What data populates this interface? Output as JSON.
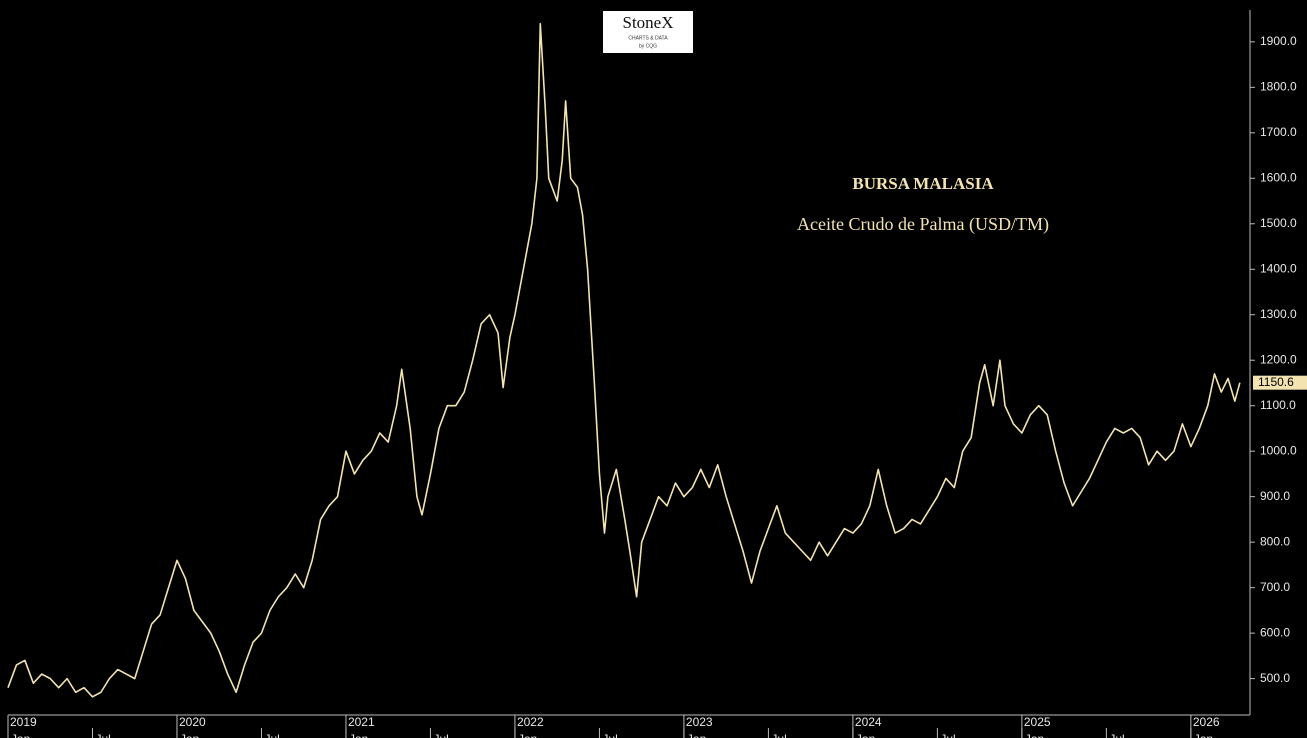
{
  "chart_data": {
    "type": "line",
    "title": "BURSA MALASIA",
    "subtitle": "Aceite Crudo de Palma (USD/TM)",
    "logo": {
      "brand": "StoneX",
      "tagline": "CHARTS & DATA",
      "byline": "by CQG"
    },
    "color": "#f3e3b0",
    "background": "#000000",
    "last_price": 1150.6,
    "x": [
      2019.0,
      2019.05,
      2019.1,
      2019.15,
      2019.2,
      2019.25,
      2019.3,
      2019.35,
      2019.4,
      2019.45,
      2019.5,
      2019.55,
      2019.6,
      2019.65,
      2019.7,
      2019.75,
      2019.8,
      2019.85,
      2019.9,
      2019.95,
      2020.0,
      2020.05,
      2020.1,
      2020.2,
      2020.25,
      2020.3,
      2020.35,
      2020.4,
      2020.45,
      2020.5,
      2020.55,
      2020.6,
      2020.65,
      2020.7,
      2020.75,
      2020.8,
      2020.85,
      2020.9,
      2020.95,
      2021.0,
      2021.05,
      2021.1,
      2021.15,
      2021.2,
      2021.25,
      2021.3,
      2021.33,
      2021.38,
      2021.42,
      2021.45,
      2021.5,
      2021.55,
      2021.6,
      2021.65,
      2021.7,
      2021.75,
      2021.8,
      2021.85,
      2021.9,
      2021.93,
      2021.97,
      2022.0,
      2022.05,
      2022.1,
      2022.13,
      2022.15,
      2022.18,
      2022.2,
      2022.25,
      2022.28,
      2022.3,
      2022.33,
      2022.37,
      2022.4,
      2022.43,
      2022.47,
      2022.5,
      2022.53,
      2022.55,
      2022.6,
      2022.65,
      2022.68,
      2022.72,
      2022.75,
      2022.8,
      2022.85,
      2022.9,
      2022.95,
      2023.0,
      2023.05,
      2023.1,
      2023.15,
      2023.2,
      2023.25,
      2023.3,
      2023.35,
      2023.4,
      2023.45,
      2023.5,
      2023.55,
      2023.6,
      2023.65,
      2023.7,
      2023.75,
      2023.8,
      2023.85,
      2023.9,
      2023.95,
      2024.0,
      2024.05,
      2024.1,
      2024.15,
      2024.2,
      2024.25,
      2024.3,
      2024.35,
      2024.4,
      2024.45,
      2024.5,
      2024.55,
      2024.6,
      2024.65,
      2024.7,
      2024.75,
      2024.78,
      2024.83,
      2024.87,
      2024.9,
      2024.95,
      2025.0,
      2025.05,
      2025.1,
      2025.15,
      2025.2,
      2025.25,
      2025.3,
      2025.35,
      2025.4,
      2025.45,
      2025.5,
      2025.55,
      2025.6,
      2025.65,
      2025.7,
      2025.75,
      2025.8,
      2025.85,
      2025.9,
      2025.95,
      2026.0,
      2026.05,
      2026.1,
      2026.14,
      2026.18,
      2026.22,
      2026.26,
      2026.29
    ],
    "values": [
      480,
      530,
      540,
      490,
      510,
      500,
      480,
      500,
      470,
      480,
      460,
      470,
      500,
      520,
      510,
      500,
      560,
      620,
      640,
      700,
      760,
      720,
      650,
      600,
      560,
      510,
      470,
      530,
      580,
      600,
      650,
      680,
      700,
      730,
      700,
      760,
      850,
      880,
      900,
      1000,
      950,
      980,
      1000,
      1040,
      1020,
      1100,
      1180,
      1050,
      900,
      860,
      950,
      1050,
      1100,
      1100,
      1130,
      1200,
      1280,
      1300,
      1260,
      1140,
      1250,
      1300,
      1400,
      1500,
      1600,
      1940,
      1750,
      1600,
      1550,
      1640,
      1770,
      1600,
      1580,
      1520,
      1400,
      1150,
      950,
      820,
      900,
      960,
      850,
      780,
      680,
      800,
      850,
      900,
      880,
      930,
      900,
      920,
      960,
      920,
      970,
      900,
      840,
      780,
      710,
      780,
      830,
      880,
      820,
      800,
      780,
      760,
      800,
      770,
      800,
      830,
      820,
      840,
      880,
      960,
      880,
      820,
      830,
      850,
      840,
      870,
      900,
      940,
      920,
      1000,
      1030,
      1150,
      1190,
      1100,
      1200,
      1100,
      1060,
      1040,
      1080,
      1100,
      1080,
      1000,
      930,
      880,
      910,
      940,
      980,
      1020,
      1050,
      1040,
      1050,
      1030,
      970,
      1000,
      980,
      1000,
      1060,
      1010,
      1050,
      1100,
      1170,
      1130,
      1160,
      1110,
      1150.6
    ],
    "xlim": [
      2019,
      2026.35
    ],
    "xticks": [
      2019,
      2020,
      2021,
      2022,
      2023,
      2024,
      2025,
      2026
    ],
    "month_ticks": [
      {
        "value": 2019.0,
        "label": "Jan"
      },
      {
        "value": 2019.5,
        "label": "Jul"
      },
      {
        "value": 2020.0,
        "label": "Jan"
      },
      {
        "value": 2020.5,
        "label": "Jul"
      },
      {
        "value": 2021.0,
        "label": "Jan"
      },
      {
        "value": 2021.5,
        "label": "Jul"
      },
      {
        "value": 2022.0,
        "label": "Jan"
      },
      {
        "value": 2022.5,
        "label": "Jul"
      },
      {
        "value": 2023.0,
        "label": "Jan"
      },
      {
        "value": 2023.5,
        "label": "Jul"
      },
      {
        "value": 2024.0,
        "label": "Jan"
      },
      {
        "value": 2024.5,
        "label": "Jul"
      },
      {
        "value": 2025.0,
        "label": "Jan"
      },
      {
        "value": 2025.5,
        "label": "Jul"
      },
      {
        "value": 2026.0,
        "label": "Jan"
      }
    ],
    "ylim": [
      420,
      1970
    ],
    "yticks": [
      {
        "value": 500,
        "label": "500.0"
      },
      {
        "value": 600,
        "label": "600.0"
      },
      {
        "value": 700,
        "label": "700.0"
      },
      {
        "value": 800,
        "label": "800.0"
      },
      {
        "value": 900,
        "label": "900.0"
      },
      {
        "value": 1000,
        "label": "1000.0"
      },
      {
        "value": 1100,
        "label": "1100.0"
      },
      {
        "value": 1200,
        "label": "1200.0"
      },
      {
        "value": 1300,
        "label": "1300.0"
      },
      {
        "value": 1400,
        "label": "1400.0"
      },
      {
        "value": 1500,
        "label": "1500.0"
      },
      {
        "value": 1600,
        "label": "1600.0"
      },
      {
        "value": 1700,
        "label": "1700.0"
      },
      {
        "value": 1800,
        "label": "1800.0"
      },
      {
        "value": 1900,
        "label": "1900.0"
      }
    ]
  }
}
